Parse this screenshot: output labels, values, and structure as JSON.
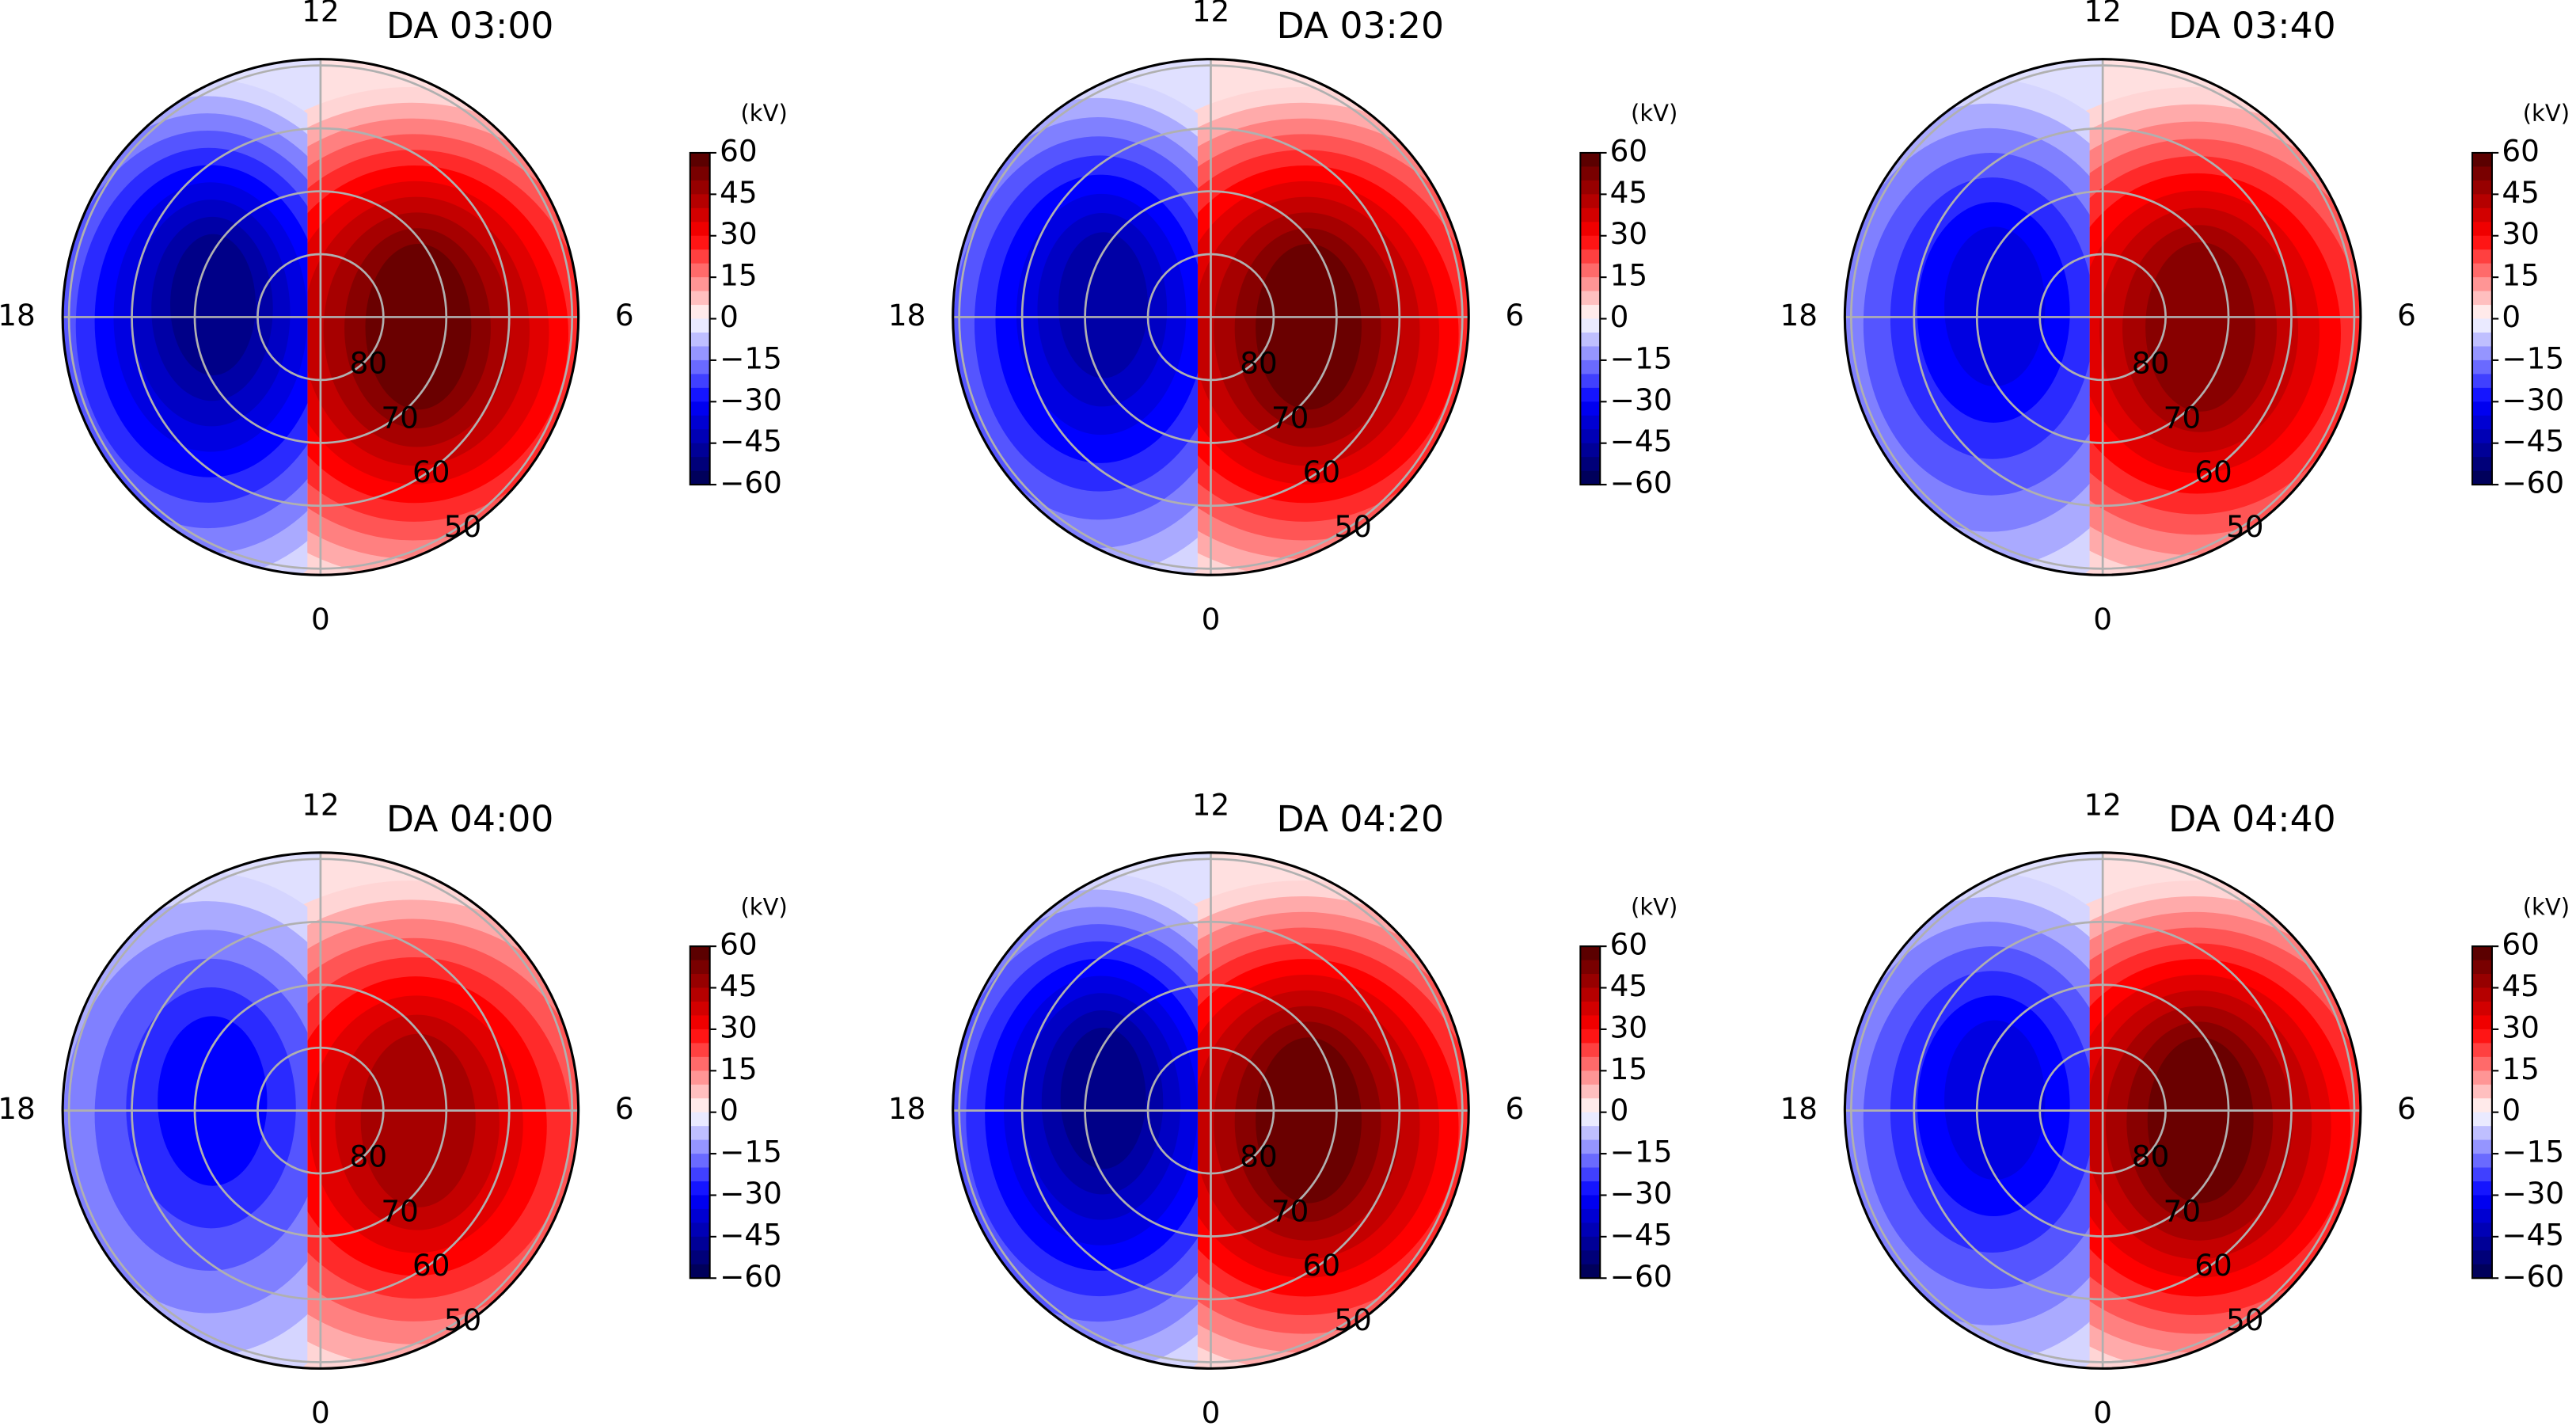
{
  "chart_data": [
    {
      "type": "polar-contour",
      "title": "DA 03:00",
      "theta_ticks": [
        12,
        6,
        0,
        18
      ],
      "rticks": [
        80,
        70,
        60,
        50
      ],
      "rlim": [
        90,
        49
      ],
      "colorbar_label": "(kV)",
      "clim": [
        -60,
        60
      ],
      "colorbar_ticks": [
        60,
        45,
        30,
        15,
        0,
        {
          "value": -15,
          "label": "−15"
        },
        {
          "value": -30,
          "label": "−30"
        },
        {
          "value": -45,
          "label": "−45"
        },
        {
          "value": -60,
          "label": "−60"
        }
      ]
    },
    {
      "type": "polar-contour",
      "title": "DA 03:20",
      "theta_ticks": [
        12,
        6,
        0,
        18
      ],
      "rticks": [
        80,
        70,
        60,
        50
      ],
      "rlim": [
        90,
        49
      ],
      "colorbar_label": "(kV)",
      "clim": [
        -60,
        60
      ],
      "colorbar_ticks": [
        60,
        45,
        30,
        15,
        0,
        {
          "value": -15,
          "label": "−15"
        },
        {
          "value": -30,
          "label": "−30"
        },
        {
          "value": -45,
          "label": "−45"
        },
        {
          "value": -60,
          "label": "−60"
        }
      ]
    },
    {
      "type": "polar-contour",
      "title": "DA 03:40",
      "theta_ticks": [
        12,
        6,
        0,
        18
      ],
      "rticks": [
        80,
        70,
        60,
        50
      ],
      "rlim": [
        90,
        49
      ],
      "colorbar_label": "(kV)",
      "clim": [
        -60,
        60
      ],
      "colorbar_ticks": [
        60,
        45,
        30,
        15,
        0,
        {
          "value": -15,
          "label": "−15"
        },
        {
          "value": -30,
          "label": "−30"
        },
        {
          "value": -45,
          "label": "−45"
        },
        {
          "value": -60,
          "label": "−60"
        }
      ]
    },
    {
      "type": "polar-contour",
      "title": "DA 04:00",
      "theta_ticks": [
        12,
        6,
        0,
        18
      ],
      "rticks": [
        80,
        70,
        60,
        50
      ],
      "rlim": [
        90,
        49
      ],
      "colorbar_label": "(kV)",
      "clim": [
        -60,
        60
      ],
      "colorbar_ticks": [
        60,
        45,
        30,
        15,
        0,
        {
          "value": -15,
          "label": "−15"
        },
        {
          "value": -30,
          "label": "−30"
        },
        {
          "value": -45,
          "label": "−45"
        },
        {
          "value": -60,
          "label": "−60"
        }
      ]
    },
    {
      "type": "polar-contour",
      "title": "DA 04:20",
      "theta_ticks": [
        12,
        6,
        0,
        18
      ],
      "rticks": [
        80,
        70,
        60,
        50
      ],
      "rlim": [
        90,
        49
      ],
      "colorbar_label": "(kV)",
      "clim": [
        -60,
        60
      ],
      "colorbar_ticks": [
        60,
        45,
        30,
        15,
        0,
        {
          "value": -15,
          "label": "−15"
        },
        {
          "value": -30,
          "label": "−30"
        },
        {
          "value": -45,
          "label": "−45"
        },
        {
          "value": -60,
          "label": "−60"
        }
      ]
    },
    {
      "type": "polar-contour",
      "title": "DA 04:40",
      "theta_ticks": [
        12,
        6,
        0,
        18
      ],
      "rticks": [
        80,
        70,
        60,
        50
      ],
      "rlim": [
        90,
        49
      ],
      "colorbar_label": "(kV)",
      "clim": [
        -60,
        60
      ],
      "colorbar_ticks": [
        60,
        45,
        30,
        15,
        0,
        {
          "value": -15,
          "label": "−15"
        },
        {
          "value": -30,
          "label": "−30"
        },
        {
          "value": -45,
          "label": "−45"
        },
        {
          "value": -60,
          "label": "−60"
        }
      ]
    }
  ]
}
